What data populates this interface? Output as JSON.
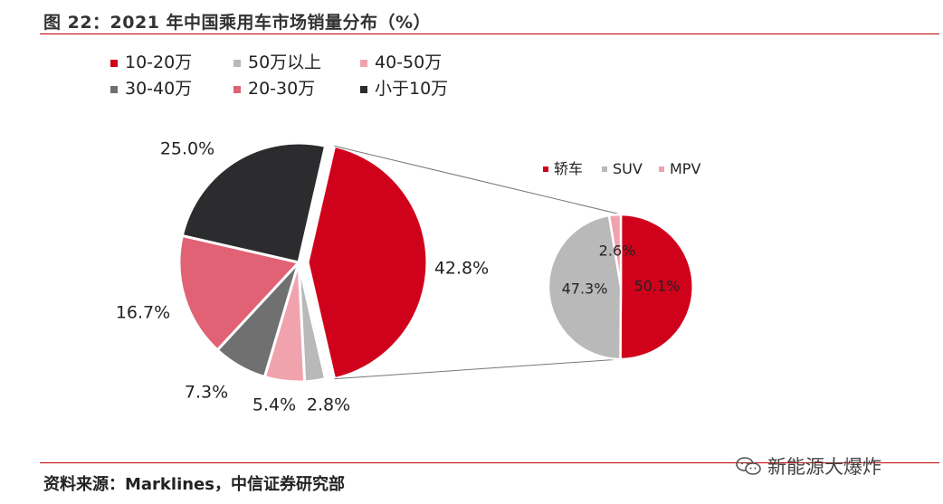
{
  "figure": {
    "title": "图 22：2021 年中国乘用车市场销量分布（%）",
    "source": "资料来源：Marklines，中信证券研究部",
    "watermark": "新能源大爆炸"
  },
  "colors": {
    "rule": "#c00000",
    "10-20万": "#d0021b",
    "50万以上": "#b9b9b9",
    "40-50万": "#f0a3ad",
    "30-40万": "#707070",
    "20-30万": "#e06274",
    "小于10万": "#2c2c2e",
    "轿车": "#d0021b",
    "SUV": "#b9b9b9",
    "MPV": "#f0a3ad"
  },
  "chart_data": [
    {
      "type": "pie",
      "legend": [
        "10-20万",
        "50万以上",
        "40-50万",
        "30-40万",
        "20-30万",
        "小于10万"
      ],
      "slices": [
        {
          "label": "10-20万",
          "value": 42.8,
          "text": "42.8%"
        },
        {
          "label": "50万以上",
          "value": 2.8,
          "text": "2.8%"
        },
        {
          "label": "40-50万",
          "value": 5.4,
          "text": "5.4%"
        },
        {
          "label": "30-40万",
          "value": 7.3,
          "text": "7.3%"
        },
        {
          "label": "20-30万",
          "value": 16.7,
          "text": "16.7%"
        },
        {
          "label": "小于10万",
          "value": 25.0,
          "text": "25.0%"
        }
      ],
      "legend_position": "top-left"
    },
    {
      "type": "pie",
      "exploded_from": "10-20万",
      "legend": [
        "轿车",
        "SUV",
        "MPV"
      ],
      "slices": [
        {
          "label": "轿车",
          "value": 50.1,
          "text": "50.1%"
        },
        {
          "label": "SUV",
          "value": 47.3,
          "text": "47.3%"
        },
        {
          "label": "MPV",
          "value": 2.6,
          "text": "2.6%"
        }
      ],
      "legend_position": "top"
    }
  ]
}
